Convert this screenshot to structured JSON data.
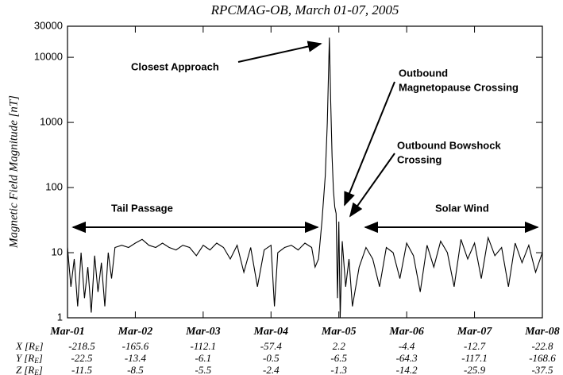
{
  "chart_data": {
    "type": "line",
    "title": "RPCMAG-OB, March 01-07, 2005",
    "y_label": "Magnetic Field Magnitude [nT]",
    "log_y": true,
    "ylim": [
      1,
      30000
    ],
    "yticks": [
      1,
      10,
      100,
      1000,
      10000,
      30000
    ],
    "xlim": [
      0,
      7
    ],
    "xticks": [
      {
        "value": 0,
        "label": "Mar-01"
      },
      {
        "value": 1,
        "label": "Mar-02"
      },
      {
        "value": 2,
        "label": "Mar-03"
      },
      {
        "value": 3,
        "label": "Mar-04"
      },
      {
        "value": 4,
        "label": "Mar-05"
      },
      {
        "value": 5,
        "label": "Mar-06"
      },
      {
        "value": 6,
        "label": "Mar-07"
      },
      {
        "value": 7,
        "label": "Mar-08"
      }
    ],
    "series": [
      {
        "color": "#000000",
        "x": [
          0,
          0.05,
          0.1,
          0.15,
          0.2,
          0.25,
          0.3,
          0.35,
          0.4,
          0.45,
          0.5,
          0.55,
          0.6,
          0.65,
          0.7,
          0.8,
          0.9,
          1.0,
          1.1,
          1.2,
          1.3,
          1.4,
          1.5,
          1.6,
          1.7,
          1.8,
          1.9,
          2.0,
          2.1,
          2.2,
          2.3,
          2.4,
          2.5,
          2.6,
          2.7,
          2.8,
          2.9,
          3.0,
          3.05,
          3.1,
          3.2,
          3.3,
          3.4,
          3.5,
          3.6,
          3.65,
          3.7,
          3.75,
          3.8,
          3.83,
          3.86,
          3.88,
          3.9,
          3.92,
          3.94,
          3.96,
          3.98,
          4.0,
          4.02,
          4.05,
          4.1,
          4.15,
          4.2,
          4.3,
          4.4,
          4.5,
          4.6,
          4.7,
          4.8,
          4.9,
          5.0,
          5.1,
          5.2,
          5.3,
          5.4,
          5.5,
          5.6,
          5.7,
          5.8,
          5.9,
          6.0,
          6.1,
          6.2,
          6.3,
          6.4,
          6.5,
          6.6,
          6.7,
          6.8,
          6.9,
          7.0
        ],
        "values": [
          12,
          3,
          8,
          1.5,
          10,
          2,
          6,
          1.2,
          9,
          2.5,
          7,
          1.5,
          10,
          4,
          12,
          13,
          12,
          14,
          16,
          13,
          12,
          14,
          12,
          11,
          13,
          12,
          9,
          13,
          11,
          14,
          12,
          8,
          13,
          5,
          12,
          3,
          11,
          13,
          1.5,
          10,
          12,
          13,
          11,
          14,
          12,
          6,
          8,
          30,
          150,
          1000,
          20000,
          2000,
          300,
          90,
          50,
          40,
          2,
          30,
          1,
          15,
          3,
          8,
          1.5,
          6,
          12,
          8,
          3,
          12,
          10,
          4,
          14,
          9,
          2.5,
          13,
          6,
          15,
          10,
          3,
          16,
          8,
          14,
          4,
          17,
          9,
          12,
          3,
          14,
          7,
          13,
          5,
          10
        ]
      }
    ],
    "annotations": {
      "closest": [
        "Closest Approach"
      ],
      "magnetopause": [
        "Outbound",
        "Magnetopause Crossing"
      ],
      "bowshock": [
        "Outbound Bowshock",
        "Crossing"
      ],
      "tail": [
        "Tail Passage"
      ],
      "solar": [
        "Solar Wind"
      ]
    },
    "orbit": [
      {
        "axis": "X",
        "unit": "R",
        "sub": "E",
        "values": [
          -218.5,
          -165.6,
          -112.1,
          -57.4,
          2.2,
          -4.4,
          -12.7,
          -22.8
        ]
      },
      {
        "axis": "Y",
        "unit": "R",
        "sub": "E",
        "values": [
          -22.5,
          -13.4,
          -6.1,
          -0.5,
          -6.5,
          -64.3,
          -117.1,
          -168.6
        ]
      },
      {
        "axis": "Z",
        "unit": "R",
        "sub": "E",
        "values": [
          -11.5,
          -8.5,
          -5.5,
          -2.4,
          -1.3,
          -14.2,
          -25.9,
          -37.5
        ]
      }
    ]
  }
}
